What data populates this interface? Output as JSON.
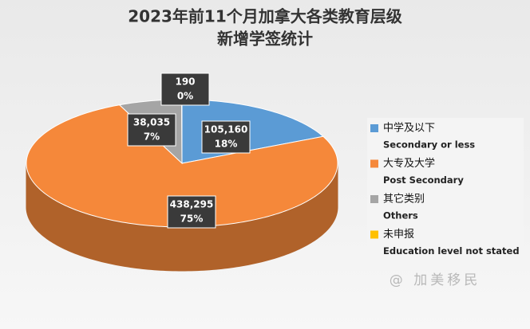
{
  "chart_data": {
    "type": "pie3d",
    "title": [
      "2023年前11个月加拿大各类教育层级",
      "新增学签统计"
    ],
    "categories": [
      "中学及以下",
      "大专及大学",
      "其它类别",
      "未申报"
    ],
    "categories_en": [
      "Secondary or less",
      "Post Secondary",
      "Others",
      "Education level not stated"
    ],
    "values": [
      105160,
      438295,
      38035,
      190
    ],
    "value_labels": [
      "105,160",
      "438,295",
      "38,035",
      "190"
    ],
    "percent_labels": [
      "18%",
      "75%",
      "7%",
      "0%"
    ],
    "colors": [
      "#5b9bd5",
      "#f5883a",
      "#a5a5a5",
      "#ffc000"
    ],
    "legend": "right",
    "watermark": "@ 加美移民"
  }
}
